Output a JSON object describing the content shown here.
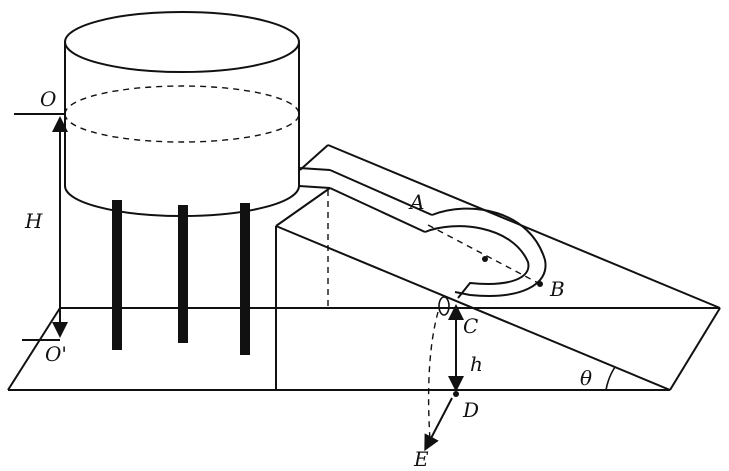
{
  "labels": {
    "O": "O",
    "O_prime": "O'",
    "H": "H",
    "A": "A",
    "B": "B",
    "C": "C",
    "h": "h",
    "D": "D",
    "E": "E",
    "theta": "θ"
  }
}
